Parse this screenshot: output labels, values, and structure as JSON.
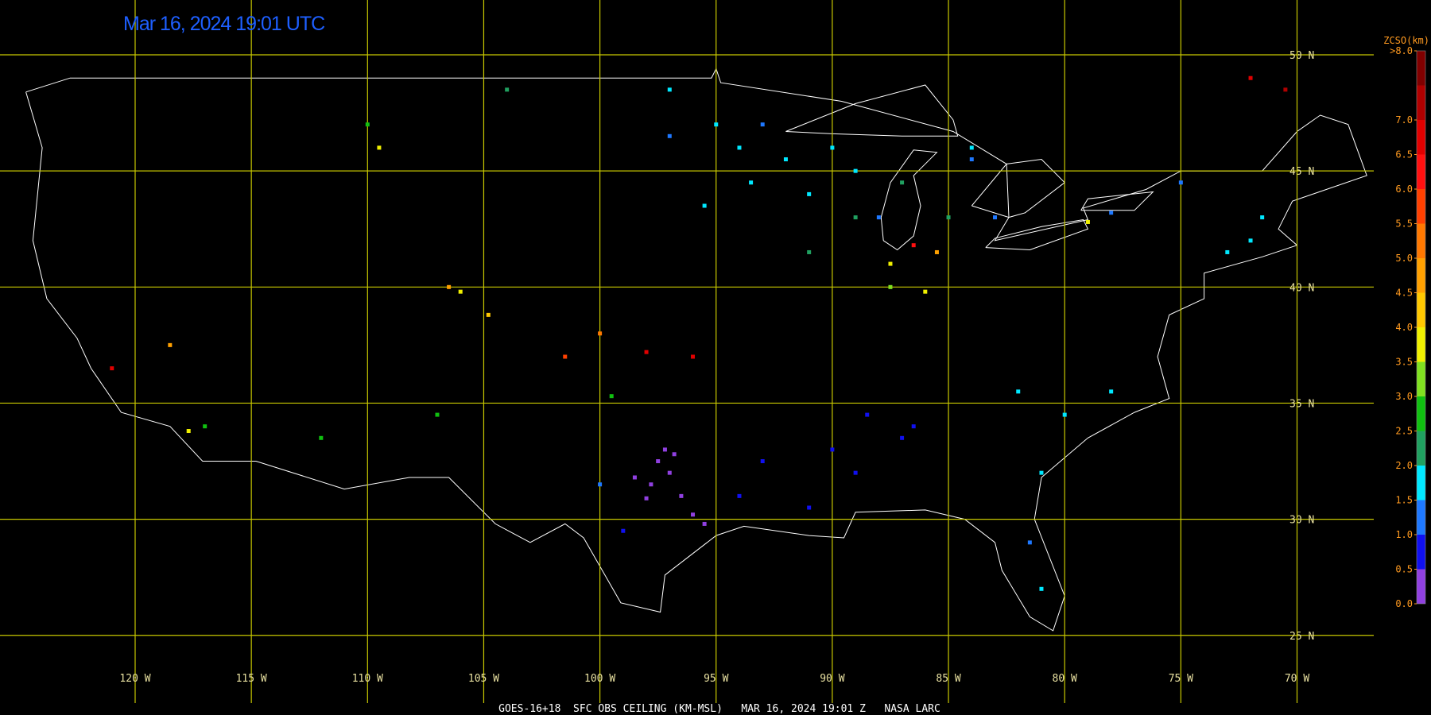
{
  "title": "Mar 16, 2024 19:01 UTC",
  "footer": "GOES-16+18  SFC OBS CEILING (KM-MSL)   MAR 16, 2024 19:01 Z   NASA LARC",
  "grid": {
    "lat_lines": [
      {
        "value": 50,
        "label": "50 N"
      },
      {
        "value": 45,
        "label": "45 N"
      },
      {
        "value": 40,
        "label": "40 N"
      },
      {
        "value": 35,
        "label": "35 N"
      },
      {
        "value": 30,
        "label": "30 N"
      },
      {
        "value": 25,
        "label": "25 N"
      }
    ],
    "lon_lines": [
      {
        "value": -120,
        "label": "120 W"
      },
      {
        "value": -115,
        "label": "115 W"
      },
      {
        "value": -110,
        "label": "110 W"
      },
      {
        "value": -105,
        "label": "105 W"
      },
      {
        "value": -100,
        "label": "100 W"
      },
      {
        "value": -95,
        "label": "95 W"
      },
      {
        "value": -90,
        "label": "90 W"
      },
      {
        "value": -85,
        "label": "85 W"
      },
      {
        "value": -80,
        "label": "80 W"
      },
      {
        "value": -75,
        "label": "75 W"
      },
      {
        "value": -70,
        "label": "70 W"
      }
    ],
    "color": "#c8c800"
  },
  "colorbar": {
    "title": "ZCSO(km)",
    "range": [
      0,
      8
    ],
    "ticks": [
      {
        "value": 0,
        "label": "0.0"
      },
      {
        "value": 0.5,
        "label": "0.5"
      },
      {
        "value": 1,
        "label": "1.0"
      },
      {
        "value": 1.5,
        "label": "1.5"
      },
      {
        "value": 2,
        "label": "2.0"
      },
      {
        "value": 2.5,
        "label": "2.5"
      },
      {
        "value": 3,
        "label": "3.0"
      },
      {
        "value": 3.5,
        "label": "3.5"
      },
      {
        "value": 4,
        "label": "4.0"
      },
      {
        "value": 4.5,
        "label": "4.5"
      },
      {
        "value": 5,
        "label": "5.0"
      },
      {
        "value": 5.5,
        "label": "5.5"
      },
      {
        "value": 6,
        "label": "6.0"
      },
      {
        "value": 6.5,
        "label": "6.5"
      },
      {
        "value": 7,
        "label": "7.0"
      },
      {
        "value": 8,
        "label": ">8.0"
      }
    ],
    "colors": [
      "#9040e0",
      "#1010f0",
      "#1e78ff",
      "#00e8ff",
      "#20a060",
      "#10c010",
      "#80e020",
      "#f0f000",
      "#ffc800",
      "#ffa000",
      "#ff7800",
      "#ff4000",
      "#ff1010",
      "#e00000",
      "#b00000",
      "#800000"
    ]
  },
  "stations": [
    {
      "lon": -97.5,
      "lat": 32.5,
      "ceiling_km": 0.3
    },
    {
      "lon": -97,
      "lat": 32,
      "ceiling_km": 0.3
    },
    {
      "lon": -97.8,
      "lat": 31.5,
      "ceiling_km": 0.4
    },
    {
      "lon": -96.5,
      "lat": 31,
      "ceiling_km": 0.3
    },
    {
      "lon": -98,
      "lat": 30.9,
      "ceiling_km": 0.4
    },
    {
      "lon": -95.5,
      "lat": 29.8,
      "ceiling_km": 0.4
    },
    {
      "lon": -96,
      "lat": 30.2,
      "ceiling_km": 0.3
    },
    {
      "lon": -97.2,
      "lat": 33,
      "ceiling_km": 0.4
    },
    {
      "lon": -96.8,
      "lat": 32.8,
      "ceiling_km": 0.3
    },
    {
      "lon": -98.5,
      "lat": 31.8,
      "ceiling_km": 0.4
    },
    {
      "lon": -90,
      "lat": 33,
      "ceiling_km": 0.7
    },
    {
      "lon": -88.5,
      "lat": 34.5,
      "ceiling_km": 0.8
    },
    {
      "lon": -86.5,
      "lat": 34,
      "ceiling_km": 0.7
    },
    {
      "lon": -87,
      "lat": 33.5,
      "ceiling_km": 0.6
    },
    {
      "lon": -89,
      "lat": 32,
      "ceiling_km": 0.8
    },
    {
      "lon": -93,
      "lat": 32.5,
      "ceiling_km": 0.9
    },
    {
      "lon": -94,
      "lat": 31,
      "ceiling_km": 0.8
    },
    {
      "lon": -91,
      "lat": 30.5,
      "ceiling_km": 0.8
    },
    {
      "lon": -99,
      "lat": 29.5,
      "ceiling_km": 0.9
    },
    {
      "lon": -100,
      "lat": 31.5,
      "ceiling_km": 1.2
    },
    {
      "lon": -95,
      "lat": 47,
      "ceiling_km": 1.8
    },
    {
      "lon": -94,
      "lat": 46,
      "ceiling_km": 1.7
    },
    {
      "lon": -92,
      "lat": 45.5,
      "ceiling_km": 1.6
    },
    {
      "lon": -93.5,
      "lat": 44.5,
      "ceiling_km": 1.8
    },
    {
      "lon": -95.5,
      "lat": 43.5,
      "ceiling_km": 1.7
    },
    {
      "lon": -91,
      "lat": 44,
      "ceiling_km": 1.9
    },
    {
      "lon": -90,
      "lat": 46,
      "ceiling_km": 1.6
    },
    {
      "lon": -89,
      "lat": 45,
      "ceiling_km": 1.8
    },
    {
      "lon": -97,
      "lat": 48.5,
      "ceiling_km": 1.7
    },
    {
      "lon": -97,
      "lat": 46.5,
      "ceiling_km": 1.3
    },
    {
      "lon": -88,
      "lat": 43,
      "ceiling_km": 1.2
    },
    {
      "lon": -84,
      "lat": 46,
      "ceiling_km": 1.8
    },
    {
      "lon": -72,
      "lat": 42,
      "ceiling_km": 1.8
    },
    {
      "lon": -71.5,
      "lat": 43,
      "ceiling_km": 1.7
    },
    {
      "lon": -73,
      "lat": 41.5,
      "ceiling_km": 1.8
    },
    {
      "lon": -80,
      "lat": 34.5,
      "ceiling_km": 1.7
    },
    {
      "lon": -78,
      "lat": 35.5,
      "ceiling_km": 1.6
    },
    {
      "lon": -82,
      "lat": 35.5,
      "ceiling_km": 1.8
    },
    {
      "lon": -81,
      "lat": 32,
      "ceiling_km": 1.6
    },
    {
      "lon": -81,
      "lat": 27,
      "ceiling_km": 1.7
    },
    {
      "lon": -81.5,
      "lat": 29,
      "ceiling_km": 1.2
    },
    {
      "lon": -83,
      "lat": 43,
      "ceiling_km": 1.3
    },
    {
      "lon": -84,
      "lat": 45.5,
      "ceiling_km": 1.2
    },
    {
      "lon": -78,
      "lat": 43.2,
      "ceiling_km": 1.2
    },
    {
      "lon": -75,
      "lat": 44.5,
      "ceiling_km": 1.3
    },
    {
      "lon": -93,
      "lat": 47,
      "ceiling_km": 1.2
    },
    {
      "lon": -89,
      "lat": 43,
      "ceiling_km": 2.3
    },
    {
      "lon": -87,
      "lat": 44.5,
      "ceiling_km": 2.4
    },
    {
      "lon": -85,
      "lat": 43,
      "ceiling_km": 2.3
    },
    {
      "lon": -91,
      "lat": 41.5,
      "ceiling_km": 2.2
    },
    {
      "lon": -104,
      "lat": 48.5,
      "ceiling_km": 2.3
    },
    {
      "lon": -110,
      "lat": 47,
      "ceiling_km": 2.7
    },
    {
      "lon": -99.5,
      "lat": 35.3,
      "ceiling_km": 2.7
    },
    {
      "lon": -107,
      "lat": 34.5,
      "ceiling_km": 2.8
    },
    {
      "lon": -112,
      "lat": 33.5,
      "ceiling_km": 2.6
    },
    {
      "lon": -117,
      "lat": 34,
      "ceiling_km": 2.8
    },
    {
      "lon": -87.5,
      "lat": 41,
      "ceiling_km": 3.8
    },
    {
      "lon": -86,
      "lat": 39.8,
      "ceiling_km": 3.9
    },
    {
      "lon": -109.5,
      "lat": 46,
      "ceiling_km": 3.7
    },
    {
      "lon": -106,
      "lat": 39.8,
      "ceiling_km": 3.8
    },
    {
      "lon": -104.8,
      "lat": 38.8,
      "ceiling_km": 4.2
    },
    {
      "lon": -117.7,
      "lat": 33.8,
      "ceiling_km": 3.7
    },
    {
      "lon": -79,
      "lat": 42.8,
      "ceiling_km": 3.8
    },
    {
      "lon": -87.5,
      "lat": 40,
      "ceiling_km": 3.4
    },
    {
      "lon": -118.5,
      "lat": 37.5,
      "ceiling_km": 4.7
    },
    {
      "lon": -106.5,
      "lat": 40,
      "ceiling_km": 4.5
    },
    {
      "lon": -101.5,
      "lat": 37,
      "ceiling_km": 5.6
    },
    {
      "lon": -100,
      "lat": 38,
      "ceiling_km": 5.3
    },
    {
      "lon": -98,
      "lat": 37.2,
      "ceiling_km": 6.5
    },
    {
      "lon": -96,
      "lat": 37,
      "ceiling_km": 6.5
    },
    {
      "lon": -121,
      "lat": 36.5,
      "ceiling_km": 6.5
    },
    {
      "lon": -72,
      "lat": 49,
      "ceiling_km": 6.8
    },
    {
      "lon": -70.5,
      "lat": 48.5,
      "ceiling_km": 7.2
    },
    {
      "lon": -85.5,
      "lat": 41.5,
      "ceiling_km": 4.8
    },
    {
      "lon": -86.5,
      "lat": 41.8,
      "ceiling_km": 6.3
    }
  ]
}
